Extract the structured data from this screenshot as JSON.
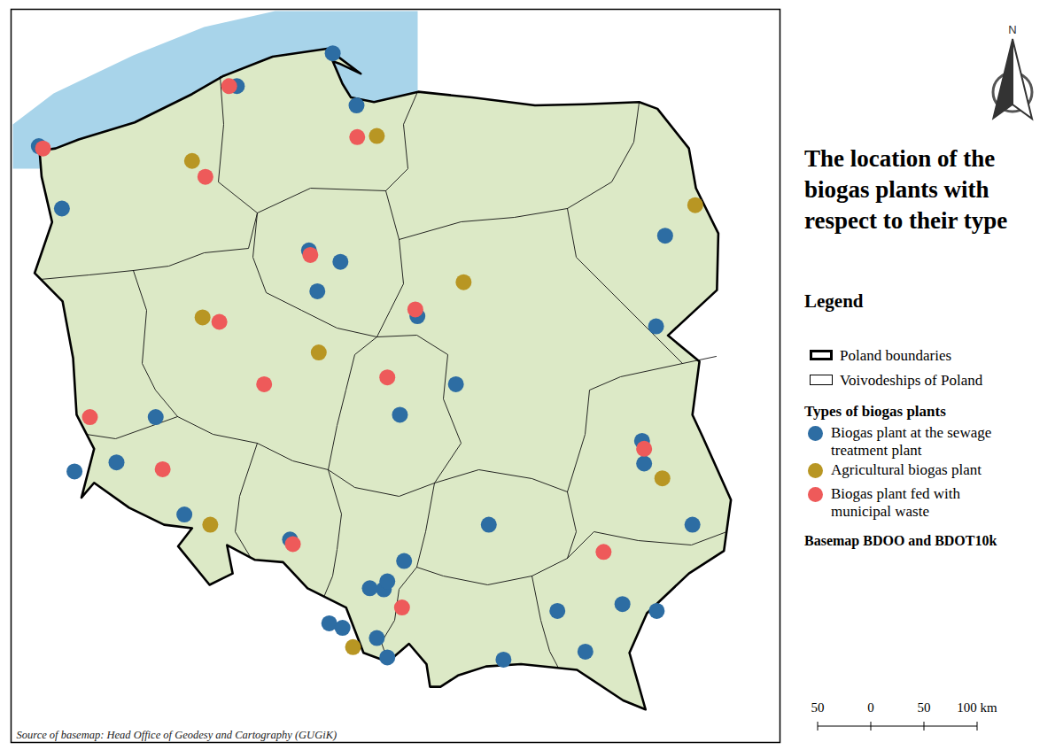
{
  "chart_data": {
    "type": "map",
    "title": "The location of the biogas plants with respect to their type",
    "legend": "right",
    "legend_title": "Legend",
    "boundaries": [
      {
        "name": "Poland boundaries",
        "line_style": "thick"
      },
      {
        "name": "Voivodeships of Poland",
        "line_style": "thin"
      }
    ],
    "series_title": "Types of biogas plants",
    "series": [
      {
        "name": "Biogas plant at the sewage treatment plant",
        "color": "#2d6da3",
        "marker": "circle",
        "lon": [
          18.41,
          17.04,
          18.75,
          14.21,
          14.54,
          23.16,
          18.52,
          18.19,
          18.07,
          19.62,
          23.03,
          20.17,
          19.37,
          15.88,
          15.32,
          14.72,
          22.83,
          22.86,
          23.55,
          16.29,
          20.64,
          17.8,
          19.43,
          18.94,
          19.14,
          19.19,
          21.62,
          22.55,
          23.04,
          18.36,
          18.55,
          19.04,
          19.19,
          22.02,
          20.85
        ],
        "lat": [
          54.79,
          54.5,
          54.33,
          53.97,
          53.42,
          53.18,
          52.95,
          52.69,
          53.05,
          52.47,
          52.38,
          51.87,
          51.6,
          51.58,
          51.18,
          51.1,
          51.37,
          51.17,
          50.63,
          50.72,
          50.63,
          50.5,
          50.31,
          50.07,
          50.06,
          50.13,
          49.87,
          49.93,
          49.87,
          49.76,
          49.72,
          49.63,
          49.46,
          49.51,
          49.44
        ]
      },
      {
        "name": "Agricultural biogas plant",
        "color": "#b89623",
        "marker": "circle",
        "lon": [
          19.04,
          16.4,
          20.28,
          23.59,
          16.55,
          18.21,
          16.66,
          23.12,
          18.7
        ],
        "lat": [
          54.06,
          53.84,
          52.77,
          53.45,
          52.46,
          52.15,
          50.63,
          51.04,
          49.55
        ]
      },
      {
        "name": "Biogas plant fed with municipal waste",
        "color": "#ee5a5a",
        "marker": "circle",
        "lon": [
          16.93,
          14.27,
          18.76,
          16.59,
          18.09,
          19.59,
          16.79,
          17.43,
          19.19,
          14.94,
          15.98,
          22.86,
          17.84,
          19.4,
          22.28
        ],
        "lat": [
          54.5,
          53.95,
          54.05,
          53.7,
          53.01,
          52.53,
          52.42,
          51.87,
          51.93,
          51.58,
          51.12,
          51.3,
          50.46,
          49.9,
          50.39
        ]
      }
    ],
    "basemap": "Basemap BDOO and BDOT10k",
    "source": "Source of basemap: Head Office of Geodesy and Cartography (GUGiK)",
    "north_label": "N",
    "scale_bar": {
      "ticks": [
        {
          "value": -50,
          "label": "50"
        },
        0,
        50,
        {
          "value": 100,
          "label": "100 km"
        }
      ]
    }
  }
}
